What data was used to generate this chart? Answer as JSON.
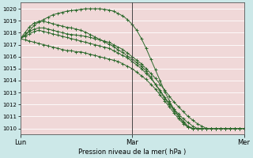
{
  "bg_color": "#cce8e8",
  "plot_bg_color": "#e8d8d8",
  "grid_color": "#ffffff",
  "line_color": "#2d6a2d",
  "ylim": [
    1009.5,
    1020.5
  ],
  "yticks": [
    1010,
    1011,
    1012,
    1013,
    1014,
    1015,
    1016,
    1017,
    1018,
    1019,
    1020
  ],
  "day_labels": [
    "Lun",
    "Mar",
    "Mer"
  ],
  "day_positions": [
    0,
    24,
    48
  ],
  "n_points": 49,
  "xlabel": "Pression niveau de la mer( hPa )",
  "series": [
    [
      1017.5,
      1017.8,
      1018.2,
      1018.6,
      1018.9,
      1019.1,
      1019.3,
      1019.5,
      1019.6,
      1019.7,
      1019.8,
      1019.85,
      1019.9,
      1019.95,
      1020.0,
      1020.0,
      1020.0,
      1020.0,
      1019.95,
      1019.9,
      1019.8,
      1019.6,
      1019.4,
      1019.1,
      1018.7,
      1018.2,
      1017.5,
      1016.7,
      1015.8,
      1014.9,
      1014.0,
      1013.1,
      1012.3,
      1011.6,
      1011.0,
      1010.5,
      1010.1,
      1010.0,
      1010.0,
      1010.0,
      1010.0,
      1010.0,
      1010.0,
      1010.0,
      1010.0,
      1010.0,
      1010.0,
      1010.0,
      1010.0
    ],
    [
      1017.5,
      1017.8,
      1018.1,
      1018.3,
      1018.4,
      1018.4,
      1018.3,
      1018.2,
      1018.1,
      1018.0,
      1017.9,
      1017.85,
      1017.8,
      1017.75,
      1017.7,
      1017.6,
      1017.5,
      1017.4,
      1017.3,
      1017.2,
      1017.0,
      1016.8,
      1016.6,
      1016.3,
      1016.0,
      1015.7,
      1015.4,
      1015.0,
      1014.6,
      1014.2,
      1013.7,
      1013.2,
      1012.7,
      1012.2,
      1011.8,
      1011.4,
      1011.0,
      1010.7,
      1010.4,
      1010.2,
      1010.0,
      1010.0,
      1010.0,
      1010.0,
      1010.0,
      1010.0,
      1010.0,
      1010.0,
      1010.0
    ],
    [
      1017.5,
      1017.7,
      1017.9,
      1018.1,
      1018.2,
      1018.1,
      1018.0,
      1017.9,
      1017.8,
      1017.7,
      1017.6,
      1017.5,
      1017.4,
      1017.3,
      1017.2,
      1017.1,
      1017.0,
      1016.9,
      1016.8,
      1016.7,
      1016.5,
      1016.3,
      1016.1,
      1015.9,
      1015.6,
      1015.3,
      1015.0,
      1014.6,
      1014.2,
      1013.7,
      1013.2,
      1012.6,
      1012.1,
      1011.6,
      1011.2,
      1010.8,
      1010.5,
      1010.2,
      1010.0,
      1010.0,
      1010.0,
      1010.0,
      1010.0,
      1010.0,
      1010.0,
      1010.0,
      1010.0,
      1010.0,
      1010.0
    ],
    [
      1017.5,
      1017.4,
      1017.3,
      1017.2,
      1017.1,
      1017.0,
      1016.9,
      1016.8,
      1016.7,
      1016.6,
      1016.5,
      1016.5,
      1016.4,
      1016.4,
      1016.3,
      1016.2,
      1016.1,
      1016.0,
      1015.9,
      1015.8,
      1015.7,
      1015.6,
      1015.4,
      1015.2,
      1015.0,
      1014.7,
      1014.4,
      1014.1,
      1013.7,
      1013.3,
      1012.8,
      1012.3,
      1011.8,
      1011.3,
      1010.8,
      1010.4,
      1010.1,
      1010.0,
      1010.0,
      1010.0,
      1010.0,
      1010.0,
      1010.0,
      1010.0,
      1010.0,
      1010.0,
      1010.0,
      1010.0,
      1010.0
    ],
    [
      1017.5,
      1018.0,
      1018.5,
      1018.8,
      1018.95,
      1018.95,
      1018.85,
      1018.75,
      1018.65,
      1018.55,
      1018.45,
      1018.4,
      1018.3,
      1018.2,
      1018.05,
      1017.85,
      1017.65,
      1017.45,
      1017.25,
      1017.05,
      1016.85,
      1016.55,
      1016.35,
      1016.05,
      1015.8,
      1015.5,
      1015.2,
      1014.8,
      1014.3,
      1013.7,
      1013.1,
      1012.5,
      1012.0,
      1011.5,
      1011.0,
      1010.6,
      1010.2,
      1010.0,
      1010.0,
      1010.0,
      1010.0,
      1010.0,
      1010.0,
      1010.0,
      1010.0,
      1010.0,
      1010.0,
      1010.0,
      1010.0
    ]
  ]
}
